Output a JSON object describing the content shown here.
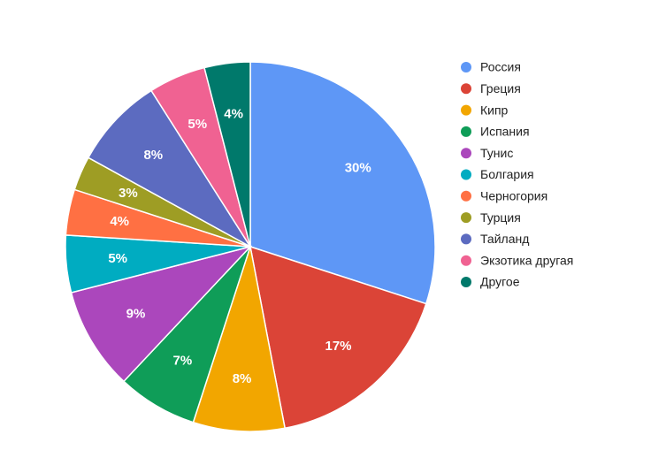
{
  "chart_data": {
    "type": "pie",
    "categories": [
      "Россия",
      "Греция",
      "Кипр",
      "Испания",
      "Тунис",
      "Болгария",
      "Черногория",
      "Турция",
      "Тайланд",
      "Экзотика другая",
      "Другое"
    ],
    "values": [
      30,
      17,
      8,
      7,
      9,
      5,
      4,
      3,
      8,
      5,
      4
    ],
    "value_labels": [
      "30%",
      "17%",
      "8%",
      "7%",
      "9%",
      "5%",
      "4%",
      "3%",
      "8%",
      "5%",
      "4%"
    ],
    "colors": [
      "#5e97f6",
      "#db4437",
      "#f2a600",
      "#0f9d58",
      "#ab47bc",
      "#00acc1",
      "#ff7043",
      "#9e9d24",
      "#5c6bc0",
      "#f06292",
      "#00796b"
    ],
    "legend": "right"
  }
}
